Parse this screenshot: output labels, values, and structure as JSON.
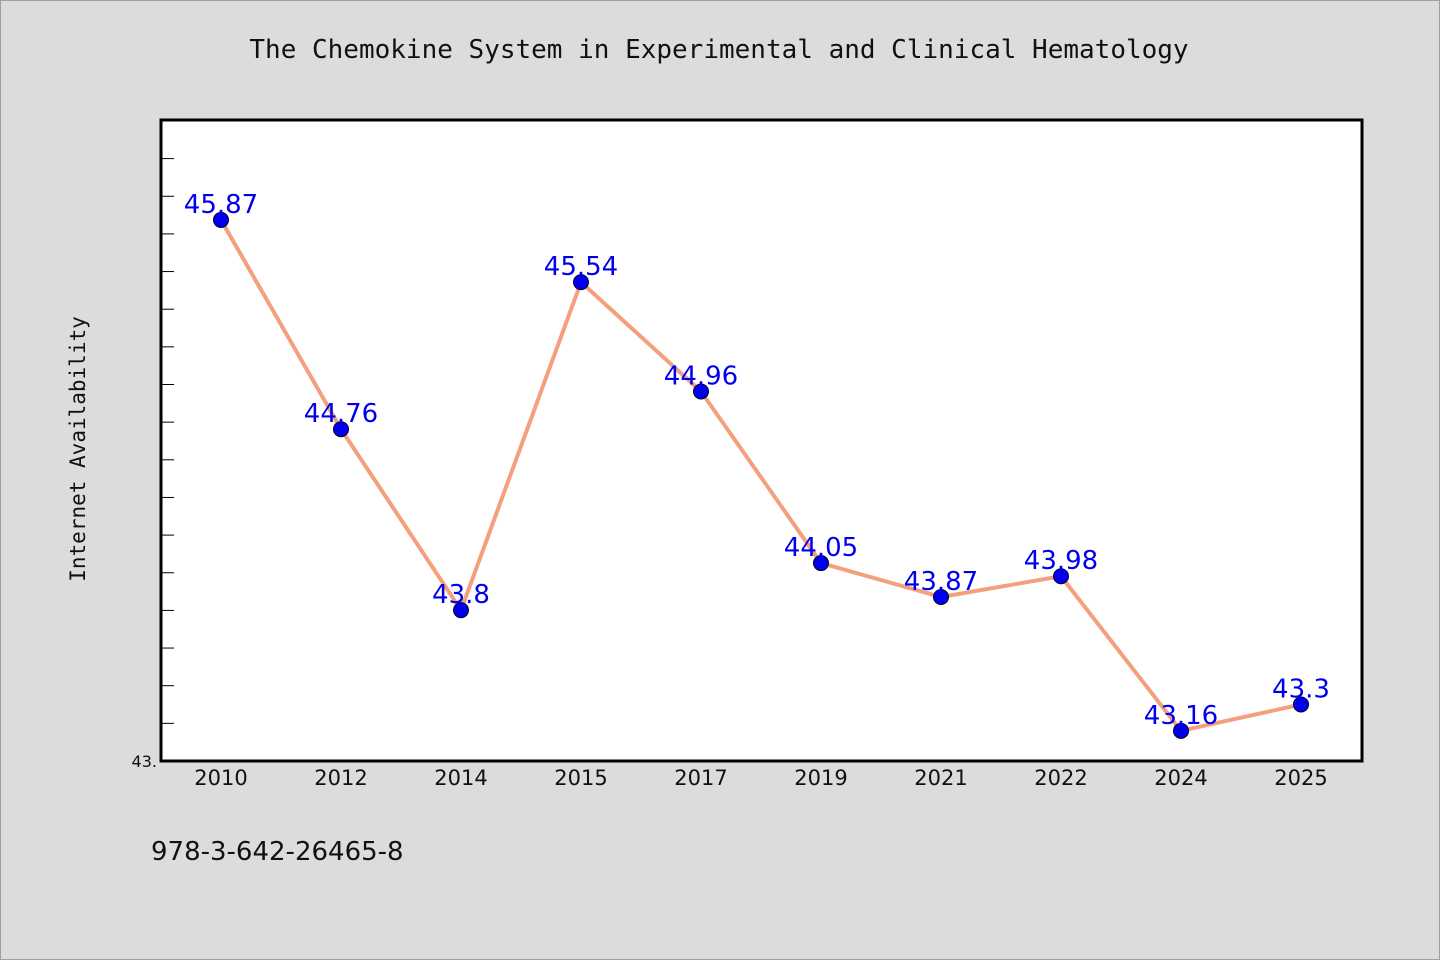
{
  "chart_data": {
    "type": "line",
    "title": "The Chemokine System in Experimental and Clinical Hematology",
    "xlabel": "",
    "ylabel": "Internet Availability",
    "categories": [
      "2010",
      "2012",
      "2014",
      "2015",
      "2017",
      "2019",
      "2021",
      "2022",
      "2024",
      "2025"
    ],
    "series": [
      {
        "values": [
          45.87,
          44.76,
          43.8,
          45.54,
          44.96,
          44.05,
          43.87,
          43.98,
          43.16,
          43.3
        ],
        "data_labels": [
          "45.87",
          "44.76",
          "43.8",
          "45.54",
          "44.96",
          "44.05",
          "43.87",
          "43.98",
          "43.16",
          "43.3"
        ],
        "line_color": "#f4a07e",
        "marker_color": "#0000ee"
      }
    ],
    "ylim": [
      43.0,
      46.4
    ],
    "y_min_label": "43.",
    "grid": false,
    "legend": "none"
  },
  "footer": {
    "isbn": "978-3-642-26465-8"
  },
  "colors": {
    "background": "#dcdcdc",
    "plot_background": "#ffffff",
    "line": "#f4a07e",
    "markers": "#0000ee",
    "labels": "#0000ee"
  }
}
